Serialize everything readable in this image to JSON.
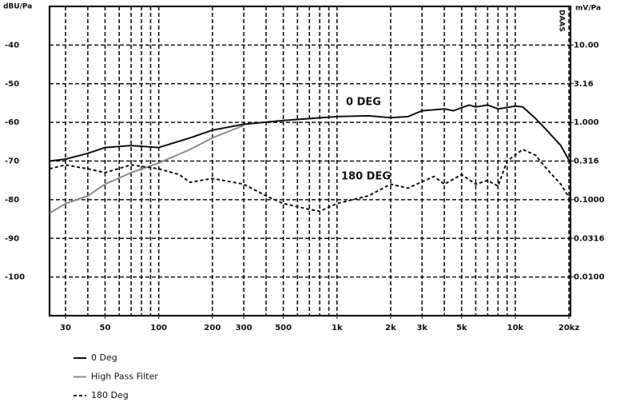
{
  "chart_data": {
    "type": "line",
    "ylabel": "dBU/Pa",
    "y2label": "mV/Pa",
    "brand": "DAAS",
    "annotations": [
      "0 DEG",
      "180 DEG"
    ],
    "xscale": "log",
    "xlim": [
      24.4,
      20400
    ],
    "ylim": [
      -110,
      -30
    ],
    "y2lim": [
      31.6,
      0.00316
    ],
    "y2scale": "log",
    "grid": true,
    "legend": "bottom-left",
    "xticks": [
      30,
      50,
      100,
      200,
      300,
      500,
      {
        "value": 1000,
        "label": "1k"
      },
      {
        "value": 2000,
        "label": "2k"
      },
      {
        "value": 3000,
        "label": "3k"
      },
      {
        "value": 5000,
        "label": "5k"
      },
      {
        "value": 10000,
        "label": "10k"
      },
      {
        "value": 20000,
        "label": "20kz"
      }
    ],
    "xgrid": [
      30,
      40,
      50,
      60,
      70,
      80,
      90,
      100,
      200,
      300,
      400,
      500,
      600,
      700,
      800,
      900,
      1000,
      2000,
      3000,
      4000,
      5000,
      6000,
      7000,
      8000,
      9000,
      10000,
      20000
    ],
    "yticks": [
      -40,
      -50,
      -60,
      -70,
      -80,
      -90,
      -100
    ],
    "y2ticks": [
      {
        "value": 10,
        "label": "10.00"
      },
      3.16,
      {
        "value": 1,
        "label": "1.000"
      },
      0.316,
      {
        "value": 0.1,
        "label": "0.1000"
      },
      0.0316,
      {
        "value": 0.01,
        "label": "0.0100"
      }
    ],
    "series": [
      {
        "name": "0 Deg",
        "color": "#111111",
        "dash": false,
        "x": [
          24.4,
          30,
          40,
          50,
          70,
          100,
          150,
          200,
          300,
          500,
          1000,
          1500,
          2000,
          2500,
          3000,
          4000,
          4500,
          5500,
          6000,
          7000,
          8000,
          10000,
          11000,
          13000,
          15000,
          18000,
          20400
        ],
        "values": [
          -70,
          -69.5,
          -68,
          -66.5,
          -66,
          -66.5,
          -64,
          -62,
          -60.5,
          -59.5,
          -58.5,
          -58.3,
          -58.8,
          -58.5,
          -57,
          -56.5,
          -57,
          -55.5,
          -56,
          -55.5,
          -56.5,
          -55.8,
          -56,
          -59,
          -62,
          -66,
          -70.5
        ]
      },
      {
        "name": "High Pass Filter",
        "color": "#8a8a8a",
        "dash": false,
        "x": [
          24.4,
          30,
          40,
          50,
          70,
          100,
          150,
          200,
          300
        ],
        "values": [
          -83.5,
          -81,
          -79,
          -76,
          -73,
          -70.5,
          -67,
          -64,
          -60.8
        ]
      },
      {
        "name": "180 Deg",
        "color": "#111111",
        "dash": true,
        "x": [
          24.4,
          30,
          40,
          50,
          70,
          100,
          130,
          150,
          200,
          300,
          400,
          500,
          700,
          800,
          1000,
          1500,
          2000,
          2500,
          3500,
          4000,
          5000,
          6000,
          7000,
          8000,
          9000,
          11000,
          13000,
          15000,
          18000,
          20400
        ],
        "values": [
          -72,
          -71,
          -72,
          -73,
          -71,
          -72,
          -73.5,
          -75.5,
          -74.5,
          -76,
          -79,
          -81,
          -82.5,
          -83,
          -81,
          -79,
          -76,
          -77,
          -74,
          -76,
          -73.5,
          -76,
          -75,
          -76.5,
          -70,
          -67,
          -68.5,
          -72,
          -76,
          -80
        ]
      }
    ]
  }
}
